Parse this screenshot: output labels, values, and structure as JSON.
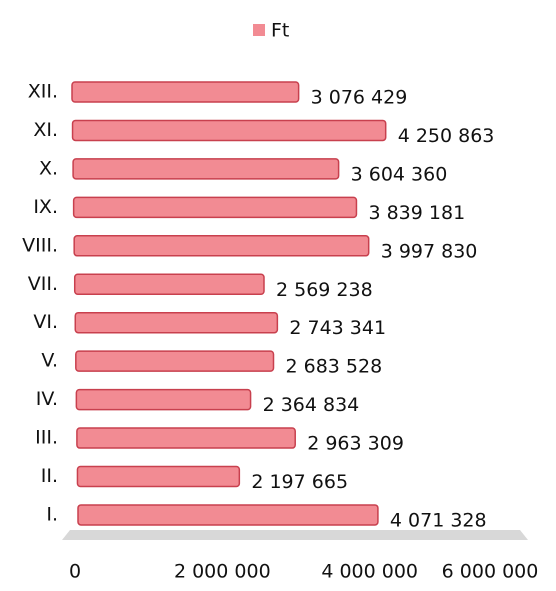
{
  "chart_data": {
    "type": "bar",
    "orientation": "horizontal",
    "legend": "top",
    "categories": [
      "I.",
      "II.",
      "III.",
      "IV.",
      "V.",
      "VI.",
      "VII.",
      "VIII.",
      "IX.",
      "X.",
      "XI.",
      "XII."
    ],
    "series": [
      {
        "name": "Ft",
        "color": "#f28b93",
        "values": [
          4071328,
          2197665,
          2963309,
          2364834,
          2683528,
          2743341,
          2569238,
          3997830,
          3839181,
          3604360,
          4250863,
          3076429
        ],
        "value_labels": [
          "4 071 328",
          "2 197 665",
          "2 963 309",
          "2 364 834",
          "2 683 528",
          "2 743 341",
          "2 569 238",
          "3 997 830",
          "3 839 181",
          "3 604 360",
          "4 250 863",
          "3 076 429"
        ]
      }
    ],
    "xlim": [
      0,
      6000000
    ],
    "xticks": [
      0,
      {
        "value": 2000000,
        "label": "2 000 000"
      },
      {
        "value": 4000000,
        "label": "4 000 000"
      },
      {
        "value": 6000000,
        "label": "6 000 000"
      }
    ],
    "grid": false
  }
}
